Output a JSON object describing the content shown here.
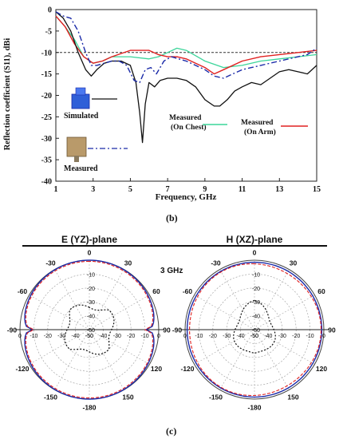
{
  "panel_labels": {
    "b": "(b)",
    "c": "(c)"
  },
  "top_chart": {
    "ylabel": "Reflection coefficient (S11), dBi",
    "xlabel": "Frequency, GHz",
    "legend": {
      "simulated": "Simulated",
      "measured": "Measured",
      "chest_1": "Measured",
      "chest_2": "(On Chest)",
      "arm_1": "Measured",
      "arm_2": "(On Arm)"
    }
  },
  "polar": {
    "left_title": "E (YZ)-plane",
    "right_title": "H (XZ)-plane",
    "freq_label": "3 GHz"
  },
  "colors": {
    "simulated": "#111111",
    "measured": "#1a2aa8",
    "chest": "#3cd59a",
    "arm": "#e02020",
    "ref_dashed": "#333333"
  },
  "chart_data": [
    {
      "type": "line",
      "xlabel": "Frequency, GHz",
      "ylabel": "Reflection coefficient (S11), dBi",
      "xlim": [
        1,
        15
      ],
      "ylim": [
        -40,
        0
      ],
      "xticks": [
        1,
        3,
        5,
        7,
        9,
        11,
        13,
        15
      ],
      "yticks": [
        0,
        -5,
        -10,
        -15,
        -20,
        -25,
        -30,
        -35,
        -40
      ],
      "reference_line": -10,
      "series": [
        {
          "name": "Simulated",
          "key": "simulated",
          "x": [
            1,
            1.4,
            1.8,
            2.2,
            2.6,
            2.9,
            3.2,
            3.6,
            4.0,
            4.5,
            5.0,
            5.3,
            5.5,
            5.65,
            5.8,
            6.0,
            6.3,
            6.6,
            7.0,
            7.5,
            8.0,
            8.5,
            9.0,
            9.5,
            9.8,
            10.2,
            10.6,
            11.0,
            11.5,
            12.0,
            12.5,
            13.0,
            13.5,
            14.0,
            14.5,
            15.0
          ],
          "y": [
            -0.5,
            -2,
            -5,
            -10,
            -14,
            -15.5,
            -14,
            -12.5,
            -12,
            -12,
            -13,
            -17,
            -24,
            -31,
            -22,
            -17,
            -18,
            -16.5,
            -16,
            -16,
            -16.5,
            -18,
            -21,
            -22.5,
            -22.5,
            -21,
            -19,
            -18,
            -17,
            -17.5,
            -16,
            -14.5,
            -14,
            -14.5,
            -15,
            -13
          ]
        },
        {
          "name": "Measured",
          "key": "measured",
          "x": [
            1,
            1.4,
            1.8,
            2.2,
            2.6,
            2.9,
            3.2,
            3.6,
            4.0,
            4.4,
            4.8,
            5.2,
            5.5,
            5.8,
            6.1,
            6.4,
            6.8,
            7.2,
            7.6,
            8.0,
            8.5,
            9.0,
            9.5,
            10.0,
            10.5,
            11.0,
            11.5,
            12.0,
            12.5,
            13.0,
            13.5,
            14.0,
            14.5,
            15.0
          ],
          "y": [
            -0.5,
            -1.5,
            -2,
            -5,
            -10,
            -13,
            -13,
            -12.5,
            -12,
            -12,
            -13,
            -16.5,
            -17,
            -14,
            -13.5,
            -15,
            -12,
            -11,
            -11.5,
            -12,
            -13,
            -14,
            -15.5,
            -16,
            -15,
            -14,
            -13.5,
            -13,
            -12.5,
            -12,
            -11.5,
            -11,
            -10.5,
            -9
          ]
        },
        {
          "name": "Measured (On Chest)",
          "key": "chest",
          "x": [
            1,
            1.5,
            2.0,
            2.5,
            3.0,
            3.5,
            4.0,
            5.0,
            6.0,
            6.5,
            7.0,
            7.5,
            8.0,
            9.0,
            10.0,
            11.0,
            12.0,
            13.0,
            14.0,
            15.0
          ],
          "y": [
            -1.5,
            -4,
            -7,
            -11,
            -12.5,
            -12,
            -11,
            -11,
            -11.5,
            -11,
            -10,
            -9,
            -9.5,
            -12,
            -13.5,
            -13,
            -12,
            -11.5,
            -11,
            -10.5
          ]
        },
        {
          "name": "Measured (On Arm)",
          "key": "arm",
          "x": [
            1,
            1.5,
            2.0,
            2.5,
            3.0,
            3.5,
            4.0,
            5.0,
            6.0,
            6.5,
            7.0,
            7.5,
            8.0,
            8.5,
            9.0,
            9.5,
            10.0,
            11.0,
            12.0,
            13.0,
            14.0,
            15.0
          ],
          "y": [
            -1.5,
            -4,
            -8,
            -11,
            -12.5,
            -12,
            -11,
            -9.5,
            -9.5,
            -10.5,
            -11,
            -11,
            -11.5,
            -12.5,
            -13.5,
            -15,
            -14,
            -12,
            -11,
            -10.5,
            -10,
            -9.5
          ]
        }
      ]
    },
    {
      "type": "polar",
      "title": "E (YZ)-plane",
      "frequency": "3 GHz",
      "radial_ticks": [
        0,
        -10,
        -20,
        -30,
        -40,
        -50
      ],
      "angle_labels": [
        "0",
        "-30",
        "-60",
        "-90",
        "-120",
        "-150",
        "-180",
        "150",
        "120",
        "90",
        "60",
        "30"
      ]
    },
    {
      "type": "polar",
      "title": "H (XZ)-plane",
      "radial_ticks": [
        0,
        -10,
        -20,
        -30,
        -40,
        -50
      ],
      "angle_labels": [
        "0",
        "-30",
        "-60",
        "-90",
        "-120",
        "-150",
        "-180",
        "150",
        "120",
        "90",
        "60",
        "30"
      ]
    }
  ]
}
